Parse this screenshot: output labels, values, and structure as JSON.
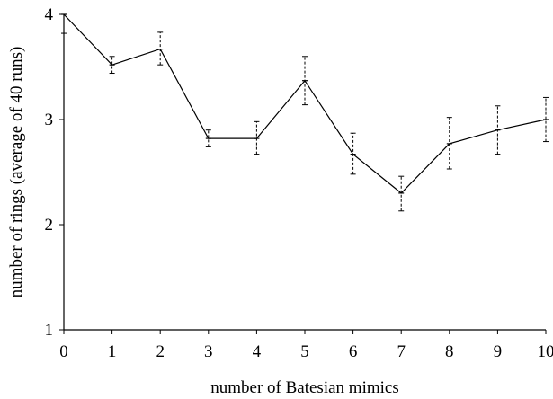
{
  "chart_data": {
    "type": "line",
    "title": "",
    "xlabel": "number of Batesian mimics",
    "ylabel": "number of rings (average of 40 runs)",
    "xlim": [
      0,
      10
    ],
    "ylim": [
      1,
      4
    ],
    "x_ticks": [
      "0",
      "1",
      "2",
      "3",
      "4",
      "5",
      "6",
      "7",
      "8",
      "9",
      "10"
    ],
    "y_ticks": [
      "1",
      "2",
      "3",
      "4"
    ],
    "grid": false,
    "legend": "none",
    "line_color": "#000000",
    "series": [
      {
        "x": [
          0,
          1,
          2,
          3,
          4,
          5,
          6,
          7,
          8,
          9,
          10
        ],
        "values": [
          4.0,
          3.52,
          3.67,
          2.82,
          2.82,
          3.37,
          2.67,
          2.3,
          2.77,
          2.9,
          3.0
        ],
        "error_low": [
          3.82,
          3.44,
          3.52,
          2.74,
          2.67,
          3.14,
          2.48,
          2.13,
          2.53,
          2.67,
          2.79
        ],
        "error_high": [
          4.0,
          3.6,
          3.83,
          2.9,
          2.98,
          3.6,
          2.87,
          2.46,
          3.02,
          3.13,
          3.21
        ]
      }
    ]
  }
}
